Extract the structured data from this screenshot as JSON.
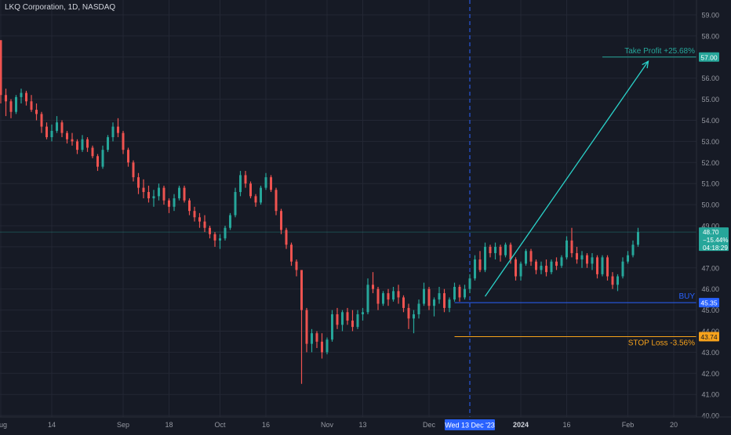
{
  "header": {
    "title": "LKQ Corporation, 1D, NASDAQ"
  },
  "chart_data": {
    "type": "candlestick",
    "y_range": [
      39.7,
      59.3
    ],
    "y_ticks": [
      "40.00",
      "41.00",
      "42.00",
      "43.00",
      "44.00",
      "45.00",
      "46.00",
      "47.00",
      "48.00",
      "49.00",
      "50.00",
      "51.00",
      "52.00",
      "53.00",
      "54.00",
      "55.00",
      "56.00",
      "57.00",
      "58.00",
      "59.00"
    ],
    "x_ticks": [
      {
        "label": "Aug",
        "index": 0
      },
      {
        "label": "14",
        "index": 10
      },
      {
        "label": "Sep",
        "index": 24
      },
      {
        "label": "18",
        "index": 33
      },
      {
        "label": "Oct",
        "index": 43
      },
      {
        "label": "16",
        "index": 52
      },
      {
        "label": "Nov",
        "index": 64
      },
      {
        "label": "13",
        "index": 71
      },
      {
        "label": "Dec",
        "index": 84
      },
      {
        "label": "2024",
        "index": 102
      },
      {
        "label": "16",
        "index": 111
      },
      {
        "label": "Feb",
        "index": 123
      },
      {
        "label": "20",
        "index": 132
      }
    ],
    "highlight": {
      "label": "Wed 13 Dec '23",
      "index": 92
    },
    "colors": {
      "up": "#26a69a",
      "down": "#ef5350",
      "arrow": "#2ad2c9",
      "buy": "#2962ff",
      "stop": "#f7a21b",
      "take": "#26a69a",
      "price": "#26a69a"
    },
    "levels": {
      "take_profit": {
        "price": 57.0,
        "label": "Take Profit +25.68%",
        "axis_label": "57.00"
      },
      "buy": {
        "price": 45.35,
        "label": "BUY",
        "axis_label": "45.35"
      },
      "stop_loss": {
        "price": 43.74,
        "label": "STOP Loss -3.56%",
        "axis_label": "43.74"
      }
    },
    "current_price": {
      "price": 48.7,
      "value": "48.70",
      "change": "−15.44%",
      "countdown": "04:18:29"
    },
    "arrow": {
      "from": {
        "index": 95,
        "price": 45.65
      },
      "to": {
        "index": 127,
        "price": 56.8
      }
    },
    "ohlc": [
      [
        57.8,
        57.8,
        54.8,
        55.2
      ],
      [
        55.2,
        55.5,
        54.2,
        54.9
      ],
      [
        54.9,
        55.0,
        54.1,
        54.4
      ],
      [
        54.4,
        55.2,
        54.3,
        55.1
      ],
      [
        55.1,
        55.5,
        54.8,
        55.3
      ],
      [
        55.3,
        55.4,
        54.7,
        54.9
      ],
      [
        54.9,
        55.2,
        54.4,
        54.5
      ],
      [
        54.5,
        54.8,
        54.0,
        54.3
      ],
      [
        54.3,
        54.4,
        53.4,
        53.7
      ],
      [
        53.7,
        53.9,
        53.1,
        53.2
      ],
      [
        53.2,
        53.8,
        53.0,
        53.5
      ],
      [
        53.5,
        54.2,
        53.4,
        53.9
      ],
      [
        53.9,
        54.0,
        53.2,
        53.4
      ],
      [
        53.4,
        53.5,
        52.9,
        53.1
      ],
      [
        53.1,
        53.4,
        52.8,
        53.0
      ],
      [
        53.0,
        53.1,
        52.4,
        52.6
      ],
      [
        52.6,
        53.3,
        52.5,
        53.1
      ],
      [
        53.1,
        53.2,
        52.5,
        52.7
      ],
      [
        52.7,
        52.8,
        52.2,
        52.3
      ],
      [
        52.3,
        52.4,
        51.6,
        51.8
      ],
      [
        51.8,
        52.8,
        51.7,
        52.6
      ],
      [
        52.6,
        53.3,
        52.5,
        53.2
      ],
      [
        53.2,
        53.9,
        53.0,
        53.7
      ],
      [
        53.7,
        54.1,
        53.2,
        53.4
      ],
      [
        53.4,
        53.5,
        52.4,
        52.6
      ],
      [
        52.6,
        52.7,
        51.8,
        52.0
      ],
      [
        52.0,
        52.1,
        51.1,
        51.3
      ],
      [
        51.3,
        51.5,
        50.5,
        50.8
      ],
      [
        50.8,
        51.2,
        50.3,
        50.6
      ],
      [
        50.6,
        50.9,
        50.1,
        50.3
      ],
      [
        50.3,
        50.7,
        49.9,
        50.4
      ],
      [
        50.4,
        51.0,
        50.2,
        50.8
      ],
      [
        50.8,
        50.9,
        50.0,
        50.2
      ],
      [
        50.2,
        50.3,
        49.6,
        49.9
      ],
      [
        49.9,
        50.5,
        49.7,
        50.3
      ],
      [
        50.3,
        50.9,
        50.2,
        50.8
      ],
      [
        50.8,
        50.9,
        50.1,
        50.2
      ],
      [
        50.2,
        50.3,
        49.5,
        49.7
      ],
      [
        49.7,
        49.9,
        49.2,
        49.4
      ],
      [
        49.4,
        49.6,
        48.9,
        49.2
      ],
      [
        49.2,
        49.5,
        48.7,
        48.9
      ],
      [
        48.9,
        49.0,
        48.4,
        48.6
      ],
      [
        48.6,
        48.7,
        48.0,
        48.3
      ],
      [
        48.3,
        48.6,
        47.9,
        48.4
      ],
      [
        48.4,
        49.0,
        48.3,
        48.9
      ],
      [
        48.9,
        49.6,
        48.8,
        49.5
      ],
      [
        49.5,
        50.8,
        49.4,
        50.6
      ],
      [
        50.6,
        51.6,
        50.4,
        51.4
      ],
      [
        51.4,
        51.6,
        50.8,
        51.0
      ],
      [
        51.0,
        51.1,
        50.3,
        50.4
      ],
      [
        50.4,
        50.5,
        49.9,
        50.1
      ],
      [
        50.1,
        50.9,
        50.0,
        50.8
      ],
      [
        50.8,
        51.5,
        50.7,
        51.3
      ],
      [
        51.3,
        51.4,
        50.6,
        50.7
      ],
      [
        50.7,
        50.8,
        49.5,
        49.7
      ],
      [
        49.7,
        49.8,
        48.6,
        48.8
      ],
      [
        48.8,
        48.9,
        47.9,
        48.1
      ],
      [
        48.1,
        48.2,
        47.1,
        47.3
      ],
      [
        47.3,
        47.4,
        46.6,
        46.9
      ],
      [
        46.9,
        46.9,
        41.5,
        45.0
      ],
      [
        45.0,
        45.1,
        43.0,
        43.4
      ],
      [
        43.4,
        44.1,
        43.0,
        43.9
      ],
      [
        43.9,
        44.0,
        43.2,
        43.5
      ],
      [
        43.5,
        43.9,
        42.7,
        43.0
      ],
      [
        43.0,
        43.7,
        42.9,
        43.6
      ],
      [
        43.6,
        45.0,
        43.5,
        44.8
      ],
      [
        44.8,
        45.1,
        44.1,
        44.3
      ],
      [
        44.3,
        45.0,
        44.0,
        44.9
      ],
      [
        44.9,
        45.1,
        44.3,
        44.5
      ],
      [
        44.5,
        45.0,
        44.0,
        44.2
      ],
      [
        44.2,
        45.0,
        44.1,
        44.8
      ],
      [
        44.8,
        45.1,
        44.5,
        44.9
      ],
      [
        44.9,
        46.5,
        44.8,
        46.2
      ],
      [
        46.2,
        46.8,
        45.8,
        46.0
      ],
      [
        46.0,
        46.1,
        45.0,
        45.3
      ],
      [
        45.3,
        45.9,
        45.2,
        45.8
      ],
      [
        45.8,
        46.0,
        45.2,
        45.5
      ],
      [
        45.5,
        46.1,
        45.4,
        45.9
      ],
      [
        45.9,
        46.2,
        45.3,
        45.6
      ],
      [
        45.6,
        45.7,
        44.9,
        45.1
      ],
      [
        45.1,
        45.3,
        44.1,
        44.6
      ],
      [
        44.6,
        45.0,
        43.9,
        44.8
      ],
      [
        44.8,
        45.5,
        44.6,
        45.3
      ],
      [
        45.3,
        46.3,
        45.2,
        46.0
      ],
      [
        46.0,
        46.1,
        45.0,
        45.2
      ],
      [
        45.2,
        45.6,
        44.7,
        45.5
      ],
      [
        45.5,
        46.1,
        45.3,
        45.8
      ],
      [
        45.8,
        46.0,
        44.9,
        45.1
      ],
      [
        45.1,
        45.6,
        44.9,
        45.5
      ],
      [
        45.5,
        46.3,
        45.4,
        46.1
      ],
      [
        46.1,
        46.2,
        45.4,
        45.6
      ],
      [
        45.6,
        46.2,
        45.5,
        46.0
      ],
      [
        46.0,
        46.7,
        45.8,
        46.5
      ],
      [
        46.5,
        47.6,
        46.4,
        47.4
      ],
      [
        47.4,
        47.8,
        46.8,
        46.9
      ],
      [
        46.9,
        48.2,
        46.8,
        48.0
      ],
      [
        48.0,
        48.1,
        47.5,
        47.7
      ],
      [
        47.7,
        48.2,
        47.4,
        48.0
      ],
      [
        48.0,
        48.1,
        47.3,
        47.6
      ],
      [
        47.6,
        48.2,
        47.5,
        48.1
      ],
      [
        48.1,
        48.2,
        47.2,
        47.4
      ],
      [
        47.4,
        47.5,
        46.4,
        46.6
      ],
      [
        46.6,
        47.3,
        46.4,
        47.2
      ],
      [
        47.2,
        47.9,
        47.1,
        47.8
      ],
      [
        47.8,
        47.9,
        47.1,
        47.3
      ],
      [
        47.3,
        47.4,
        46.7,
        46.9
      ],
      [
        46.9,
        47.3,
        46.7,
        47.1
      ],
      [
        47.1,
        47.4,
        46.6,
        46.8
      ],
      [
        46.8,
        47.4,
        46.7,
        47.3
      ],
      [
        47.3,
        47.5,
        46.9,
        47.1
      ],
      [
        47.1,
        47.6,
        47.0,
        47.5
      ],
      [
        47.5,
        48.5,
        47.4,
        48.3
      ],
      [
        48.3,
        48.9,
        47.5,
        47.7
      ],
      [
        47.7,
        48.0,
        47.2,
        47.4
      ],
      [
        47.4,
        47.8,
        47.0,
        47.6
      ],
      [
        47.6,
        47.7,
        47.0,
        47.2
      ],
      [
        47.2,
        47.7,
        46.9,
        47.5
      ],
      [
        47.5,
        47.6,
        46.5,
        46.7
      ],
      [
        46.7,
        47.6,
        46.6,
        47.5
      ],
      [
        47.5,
        47.6,
        46.4,
        46.6
      ],
      [
        46.6,
        46.8,
        46.0,
        46.2
      ],
      [
        46.2,
        46.7,
        45.9,
        46.6
      ],
      [
        46.6,
        47.5,
        46.5,
        47.3
      ],
      [
        47.3,
        47.8,
        47.2,
        47.6
      ],
      [
        47.6,
        48.3,
        47.5,
        48.1
      ],
      [
        48.1,
        48.9,
        48.0,
        48.7
      ]
    ]
  }
}
